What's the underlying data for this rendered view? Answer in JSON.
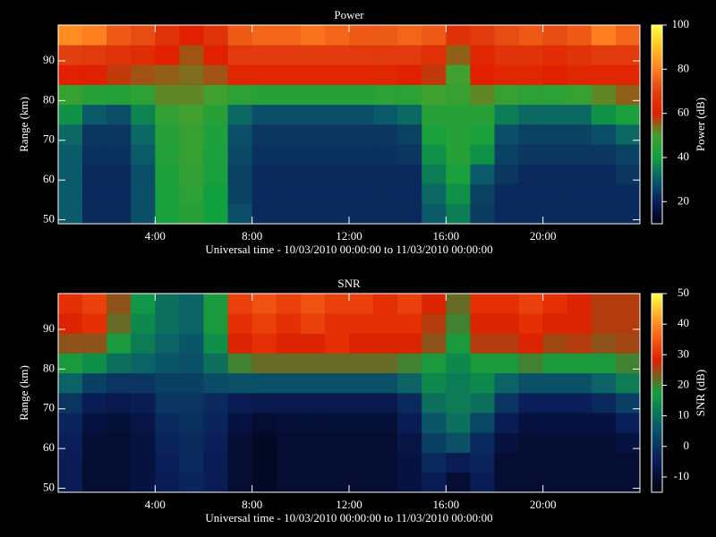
{
  "chart_data": [
    {
      "type": "heatmap",
      "title": "Power",
      "xlabel": "Universal time - 10/03/2010 00:00:00 to 11/03/2010 00:00:00",
      "ylabel": "Range (km)",
      "colorbar_label": "Power (dB)",
      "x": [
        0.5,
        1.5,
        2.5,
        3.5,
        4.5,
        5.5,
        6.5,
        7.5,
        8.5,
        9.5,
        10.5,
        11.5,
        12.5,
        13.5,
        14.5,
        15.5,
        16.5,
        17.5,
        18.5,
        19.5,
        20.5,
        21.5,
        22.5,
        23.5
      ],
      "y": [
        51.5,
        56.5,
        61.5,
        66.5,
        71.5,
        76.5,
        81.5,
        86.5,
        91.5,
        96.5
      ],
      "z": [
        [
          30,
          22,
          22,
          28,
          42,
          45,
          40,
          28,
          22,
          22,
          22,
          22,
          22,
          22,
          22,
          30,
          35,
          25,
          22,
          22,
          22,
          22,
          22,
          22
        ],
        [
          30,
          22,
          22,
          28,
          42,
          46,
          40,
          26,
          22,
          22,
          22,
          22,
          22,
          22,
          22,
          32,
          38,
          26,
          22,
          22,
          22,
          22,
          22,
          22
        ],
        [
          30,
          22,
          22,
          28,
          43,
          47,
          42,
          26,
          22,
          22,
          22,
          22,
          22,
          22,
          22,
          35,
          42,
          30,
          24,
          22,
          22,
          22,
          22,
          24
        ],
        [
          30,
          23,
          23,
          30,
          44,
          48,
          42,
          27,
          23,
          23,
          23,
          23,
          23,
          23,
          24,
          38,
          45,
          38,
          26,
          24,
          24,
          24,
          24,
          26
        ],
        [
          32,
          24,
          24,
          32,
          45,
          48,
          43,
          28,
          24,
          24,
          24,
          24,
          24,
          24,
          26,
          42,
          45,
          42,
          28,
          26,
          26,
          26,
          28,
          32
        ],
        [
          38,
          30,
          28,
          36,
          47,
          50,
          45,
          32,
          28,
          28,
          28,
          28,
          28,
          30,
          32,
          45,
          45,
          45,
          35,
          32,
          32,
          32,
          38,
          42
        ],
        [
          48,
          45,
          44,
          46,
          52,
          52,
          50,
          46,
          45,
          45,
          45,
          45,
          45,
          46,
          46,
          50,
          48,
          52,
          48,
          46,
          46,
          48,
          52,
          55
        ],
        [
          60,
          60,
          58,
          56,
          55,
          54,
          56,
          62,
          62,
          62,
          62,
          62,
          62,
          62,
          60,
          58,
          50,
          60,
          62,
          62,
          60,
          62,
          62,
          62
        ],
        [
          70,
          68,
          66,
          64,
          60,
          56,
          60,
          68,
          68,
          68,
          68,
          68,
          68,
          68,
          68,
          65,
          55,
          62,
          66,
          66,
          64,
          66,
          68,
          68
        ],
        [
          82,
          80,
          74,
          72,
          66,
          60,
          66,
          74,
          76,
          76,
          78,
          76,
          74,
          74,
          76,
          74,
          65,
          68,
          72,
          74,
          72,
          74,
          80,
          76
        ]
      ],
      "xlim": [
        0,
        24
      ],
      "ylim": [
        49,
        99
      ],
      "xticks": [
        {
          "value": 4,
          "label": "4:00"
        },
        {
          "value": 8,
          "label": "8:00"
        },
        {
          "value": 12,
          "label": "12:00"
        },
        {
          "value": 16,
          "label": "16:00"
        },
        {
          "value": 20,
          "label": "20:00"
        }
      ],
      "yticks": [
        50,
        60,
        70,
        80,
        90
      ],
      "zlim": [
        10,
        100
      ],
      "zticks": [
        20,
        40,
        60,
        80,
        100
      ],
      "colormap": [
        "#000010",
        "#0a1e5a",
        "#0a5a6a",
        "#10a040",
        "#40a030",
        "#e02000",
        "#e04010",
        "#ff8020",
        "#ffc020",
        "#ffff40"
      ]
    },
    {
      "type": "heatmap",
      "title": "SNR",
      "xlabel": "Universal time - 10/03/2010 00:00:00 to 11/03/2010 00:00:00",
      "ylabel": "Range (km)",
      "colorbar_label": "SNR (dB)",
      "x": [
        0.5,
        1.5,
        2.5,
        3.5,
        4.5,
        5.5,
        6.5,
        7.5,
        8.5,
        9.5,
        10.5,
        11.5,
        12.5,
        13.5,
        14.5,
        15.5,
        16.5,
        17.5,
        18.5,
        19.5,
        20.5,
        21.5,
        22.5,
        23.5
      ],
      "y": [
        51.5,
        56.5,
        61.5,
        66.5,
        71.5,
        76.5,
        81.5,
        86.5,
        91.5,
        96.5
      ],
      "z": [
        [
          -5,
          -10,
          -10,
          -8,
          -5,
          -3,
          -5,
          -10,
          -12,
          -10,
          -10,
          -10,
          -10,
          -10,
          -8,
          -5,
          -10,
          -5,
          -10,
          -10,
          -10,
          -10,
          -10,
          -10
        ],
        [
          -5,
          -10,
          -10,
          -8,
          -4,
          -2,
          -5,
          -10,
          -12,
          -10,
          -10,
          -10,
          -10,
          -10,
          -8,
          -2,
          -5,
          -3,
          -10,
          -10,
          -10,
          -10,
          -10,
          -10
        ],
        [
          -4,
          -10,
          -10,
          -8,
          -3,
          -2,
          -4,
          -10,
          -12,
          -10,
          -10,
          -10,
          -10,
          -10,
          -7,
          2,
          5,
          -2,
          -8,
          -10,
          -10,
          -10,
          -10,
          -8
        ],
        [
          -3,
          -8,
          -9,
          -7,
          -2,
          -1,
          -3,
          -8,
          -10,
          -9,
          -9,
          -9,
          -9,
          -9,
          -5,
          6,
          10,
          3,
          -5,
          -8,
          -8,
          -8,
          -8,
          -4
        ],
        [
          0,
          -5,
          -6,
          -5,
          0,
          0,
          -2,
          -5,
          -6,
          -6,
          -6,
          -6,
          -6,
          -6,
          -2,
          10,
          12,
          10,
          0,
          -4,
          -4,
          -4,
          -2,
          2
        ],
        [
          8,
          2,
          0,
          0,
          2,
          2,
          4,
          5,
          5,
          5,
          5,
          5,
          5,
          5,
          8,
          14,
          12,
          14,
          8,
          5,
          5,
          5,
          8,
          12
        ],
        [
          18,
          15,
          10,
          8,
          6,
          5,
          10,
          20,
          22,
          22,
          22,
          22,
          22,
          22,
          20,
          18,
          14,
          18,
          18,
          20,
          18,
          18,
          18,
          20
        ],
        [
          24,
          24,
          18,
          12,
          8,
          6,
          15,
          28,
          30,
          28,
          28,
          30,
          28,
          28,
          28,
          24,
          18,
          26,
          26,
          28,
          25,
          26,
          24,
          25
        ],
        [
          28,
          30,
          22,
          14,
          10,
          8,
          18,
          30,
          32,
          30,
          32,
          30,
          30,
          30,
          30,
          26,
          20,
          28,
          28,
          30,
          28,
          28,
          26,
          26
        ],
        [
          30,
          32,
          24,
          16,
          10,
          8,
          18,
          32,
          34,
          32,
          34,
          32,
          32,
          30,
          32,
          28,
          22,
          30,
          30,
          32,
          30,
          28,
          26,
          26
        ]
      ],
      "xlim": [
        0,
        24
      ],
      "ylim": [
        49,
        99
      ],
      "xticks": [
        {
          "value": 4,
          "label": "4:00"
        },
        {
          "value": 8,
          "label": "8:00"
        },
        {
          "value": 12,
          "label": "12:00"
        },
        {
          "value": 16,
          "label": "16:00"
        },
        {
          "value": 20,
          "label": "20:00"
        }
      ],
      "yticks": [
        50,
        60,
        70,
        80,
        90
      ],
      "zlim": [
        -15,
        50
      ],
      "zticks": [
        -10,
        0,
        10,
        20,
        30,
        40,
        50
      ],
      "colormap": [
        "#000010",
        "#0a1e5a",
        "#0a5a6a",
        "#10a040",
        "#e02000",
        "#ff8020",
        "#ffff40"
      ]
    }
  ]
}
